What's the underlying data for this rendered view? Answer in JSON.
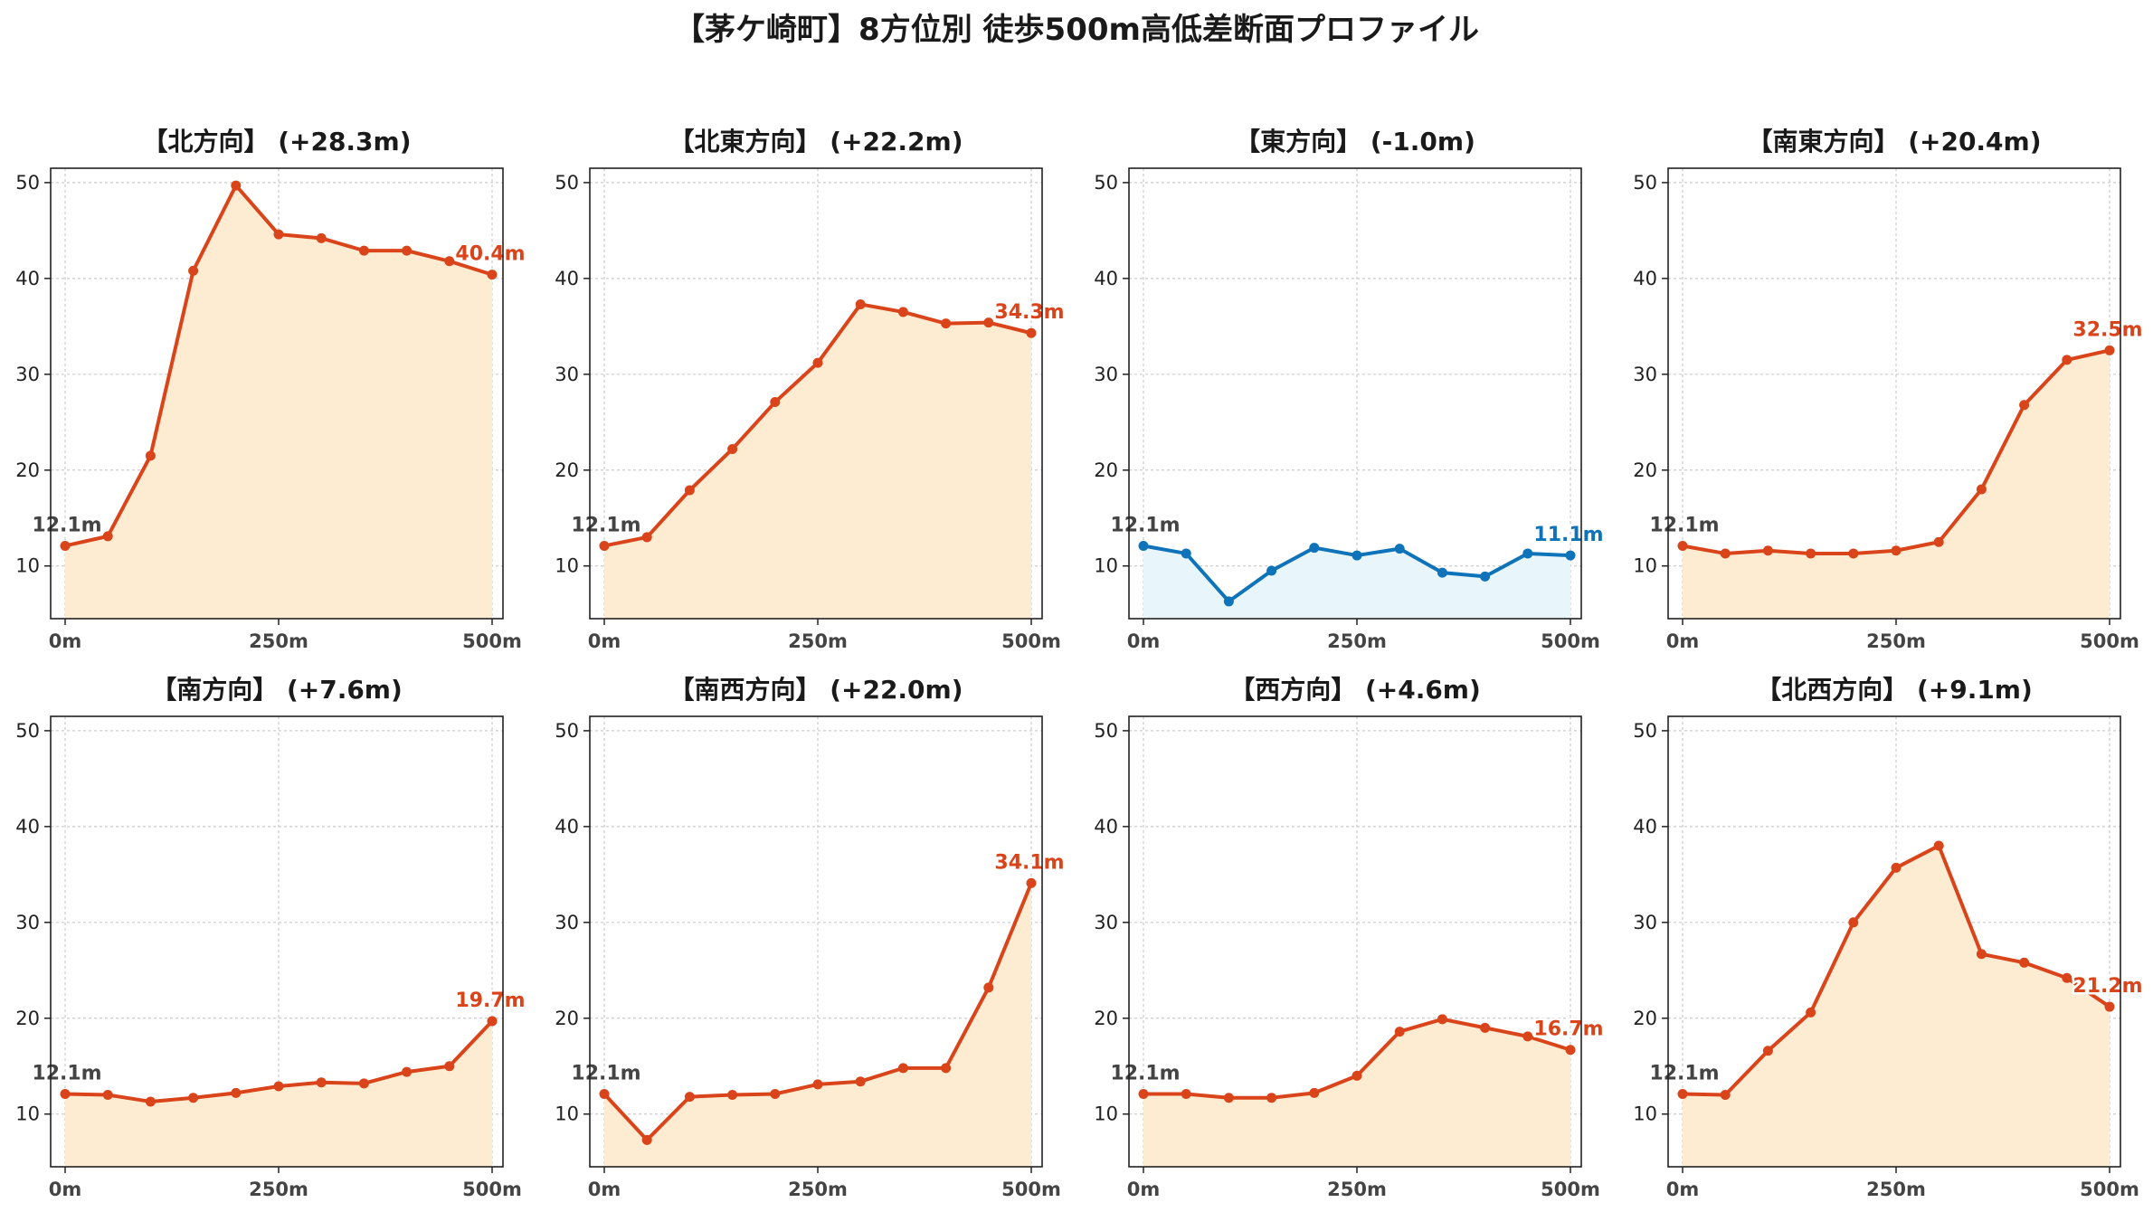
{
  "figure_title": "【茅ケ崎町】8方位別 徒歩500m高低差断面プロファイル",
  "colors": {
    "up_line": "#d9441a",
    "up_fill": "#feecd2",
    "down_line": "#0e73b8",
    "down_fill": "#e8f6fc",
    "start_label": "#444444",
    "grid": "#cccccc",
    "axis": "#222222"
  },
  "chart_data": [
    {
      "type": "area",
      "title": "【北方向】 (+28.3m)",
      "x": [
        0,
        50,
        100,
        150,
        200,
        250,
        300,
        350,
        400,
        450,
        500
      ],
      "values": [
        12.1,
        13.1,
        21.5,
        40.8,
        49.7,
        44.6,
        44.2,
        42.9,
        42.9,
        41.8,
        40.4
      ],
      "start_label": "12.1m",
      "end_label": "40.4m",
      "trend": "up",
      "xticks": [
        "0m",
        "250m",
        "500m"
      ],
      "yticks": [
        10,
        20,
        30,
        40,
        50
      ],
      "xlim": [
        0,
        500
      ],
      "ylim": [
        4.5,
        51.5
      ],
      "grid": true
    },
    {
      "type": "area",
      "title": "【北東方向】 (+22.2m)",
      "x": [
        0,
        50,
        100,
        150,
        200,
        250,
        300,
        350,
        400,
        450,
        500
      ],
      "values": [
        12.1,
        13.0,
        17.9,
        22.2,
        27.1,
        31.2,
        37.3,
        36.5,
        35.3,
        35.4,
        34.3
      ],
      "start_label": "12.1m",
      "end_label": "34.3m",
      "trend": "up",
      "xticks": [
        "0m",
        "250m",
        "500m"
      ],
      "yticks": [
        10,
        20,
        30,
        40,
        50
      ],
      "xlim": [
        0,
        500
      ],
      "ylim": [
        4.5,
        51.5
      ],
      "grid": true
    },
    {
      "type": "area",
      "title": "【東方向】 (-1.0m)",
      "x": [
        0,
        50,
        100,
        150,
        200,
        250,
        300,
        350,
        400,
        450,
        500
      ],
      "values": [
        12.1,
        11.3,
        6.3,
        9.5,
        11.9,
        11.1,
        11.8,
        9.3,
        8.9,
        11.3,
        11.1
      ],
      "start_label": "12.1m",
      "end_label": "11.1m",
      "trend": "down",
      "xticks": [
        "0m",
        "250m",
        "500m"
      ],
      "yticks": [
        10,
        20,
        30,
        40,
        50
      ],
      "xlim": [
        0,
        500
      ],
      "ylim": [
        4.5,
        51.5
      ],
      "grid": true
    },
    {
      "type": "area",
      "title": "【南東方向】 (+20.4m)",
      "x": [
        0,
        50,
        100,
        150,
        200,
        250,
        300,
        350,
        400,
        450,
        500
      ],
      "values": [
        12.1,
        11.3,
        11.6,
        11.3,
        11.3,
        11.6,
        12.5,
        18.0,
        26.8,
        31.5,
        32.5
      ],
      "start_label": "12.1m",
      "end_label": "32.5m",
      "trend": "up",
      "xticks": [
        "0m",
        "250m",
        "500m"
      ],
      "yticks": [
        10,
        20,
        30,
        40,
        50
      ],
      "xlim": [
        0,
        500
      ],
      "ylim": [
        4.5,
        51.5
      ],
      "grid": true
    },
    {
      "type": "area",
      "title": "【南方向】 (+7.6m)",
      "x": [
        0,
        50,
        100,
        150,
        200,
        250,
        300,
        350,
        400,
        450,
        500
      ],
      "values": [
        12.1,
        12.0,
        11.3,
        11.7,
        12.2,
        12.9,
        13.3,
        13.2,
        14.4,
        15.0,
        19.7
      ],
      "start_label": "12.1m",
      "end_label": "19.7m",
      "trend": "up",
      "xticks": [
        "0m",
        "250m",
        "500m"
      ],
      "yticks": [
        10,
        20,
        30,
        40,
        50
      ],
      "xlim": [
        0,
        500
      ],
      "ylim": [
        4.5,
        51.5
      ],
      "grid": true
    },
    {
      "type": "area",
      "title": "【南西方向】 (+22.0m)",
      "x": [
        0,
        50,
        100,
        150,
        200,
        250,
        300,
        350,
        400,
        450,
        500
      ],
      "values": [
        12.1,
        7.3,
        11.8,
        12.0,
        12.1,
        13.1,
        13.4,
        14.8,
        14.8,
        23.2,
        34.1
      ],
      "start_label": "12.1m",
      "end_label": "34.1m",
      "trend": "up",
      "xticks": [
        "0m",
        "250m",
        "500m"
      ],
      "yticks": [
        10,
        20,
        30,
        40,
        50
      ],
      "xlim": [
        0,
        500
      ],
      "ylim": [
        4.5,
        51.5
      ],
      "grid": true
    },
    {
      "type": "area",
      "title": "【西方向】 (+4.6m)",
      "x": [
        0,
        50,
        100,
        150,
        200,
        250,
        300,
        350,
        400,
        450,
        500
      ],
      "values": [
        12.1,
        12.1,
        11.7,
        11.7,
        12.2,
        14.0,
        18.6,
        19.9,
        19.0,
        18.1,
        16.7
      ],
      "start_label": "12.1m",
      "end_label": "16.7m",
      "trend": "up",
      "xticks": [
        "0m",
        "250m",
        "500m"
      ],
      "yticks": [
        10,
        20,
        30,
        40,
        50
      ],
      "xlim": [
        0,
        500
      ],
      "ylim": [
        4.5,
        51.5
      ],
      "grid": true
    },
    {
      "type": "area",
      "title": "【北西方向】 (+9.1m)",
      "x": [
        0,
        50,
        100,
        150,
        200,
        250,
        300,
        350,
        400,
        450,
        500
      ],
      "values": [
        12.1,
        12.0,
        16.6,
        20.6,
        30.0,
        35.7,
        38.0,
        26.7,
        25.8,
        24.2,
        21.2
      ],
      "start_label": "12.1m",
      "end_label": "21.2m",
      "trend": "up",
      "xticks": [
        "0m",
        "250m",
        "500m"
      ],
      "yticks": [
        10,
        20,
        30,
        40,
        50
      ],
      "xlim": [
        0,
        500
      ],
      "ylim": [
        4.5,
        51.5
      ],
      "grid": true
    }
  ]
}
